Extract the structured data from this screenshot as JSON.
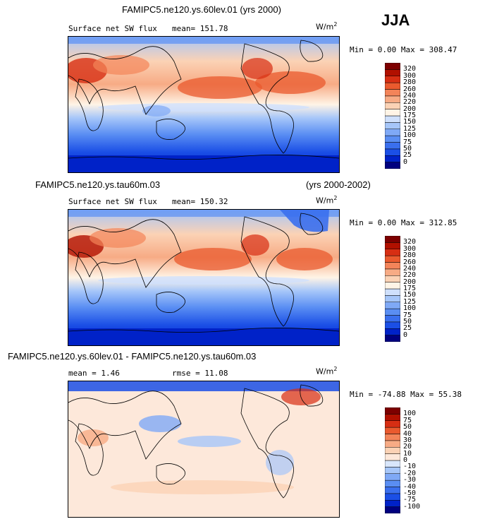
{
  "season": "JJA",
  "chart_data": [
    {
      "type": "heatmap",
      "title": "FAMIPC5.ne120.ys.60lev.01 (yrs 2000)",
      "subtitle_left": "Surface net SW flux",
      "stat1": "mean= 151.78",
      "units_main": "W/m",
      "units_exp": "2",
      "minmax": "Min =   0.00 Max = 308.47",
      "colorbar_levels": [
        "0",
        "25",
        "50",
        "75",
        "100",
        "125",
        "150",
        "175",
        "200",
        "220",
        "240",
        "260",
        "280",
        "300",
        "320"
      ],
      "colorbar_colors": [
        "#00007f",
        "#0022c8",
        "#1b4fe6",
        "#3a6fee",
        "#5a8ef3",
        "#7fa9f6",
        "#a6c6f9",
        "#cfe0fc",
        "#fff4e6",
        "#fbd2b5",
        "#f7ab85",
        "#f38459",
        "#ea5a2e",
        "#d72e13",
        "#b11000",
        "#7d0000"
      ]
    },
    {
      "type": "heatmap",
      "title": "FAMIPC5.ne120.ys.tau60m.03",
      "title_right": "(yrs 2000-2002)",
      "subtitle_left": "Surface net SW flux",
      "stat1": "mean= 150.32",
      "units_main": "W/m",
      "units_exp": "2",
      "minmax": "Min =   0.00 Max = 312.85",
      "colorbar_levels": [
        "0",
        "25",
        "50",
        "75",
        "100",
        "125",
        "150",
        "175",
        "200",
        "220",
        "240",
        "260",
        "280",
        "300",
        "320"
      ],
      "colorbar_colors": [
        "#00007f",
        "#0022c8",
        "#1b4fe6",
        "#3a6fee",
        "#5a8ef3",
        "#7fa9f6",
        "#a6c6f9",
        "#cfe0fc",
        "#fff4e6",
        "#fbd2b5",
        "#f7ab85",
        "#f38459",
        "#ea5a2e",
        "#d72e13",
        "#b11000",
        "#7d0000"
      ]
    },
    {
      "type": "heatmap",
      "title": "FAMIPC5.ne120.ys.60lev.01 - FAMIPC5.ne120.ys.tau60m.03",
      "stat1": "mean =   1.46",
      "stat2": "rmse =  11.08",
      "units_main": "W/m",
      "units_exp": "2",
      "minmax": "Min = -74.88 Max =  55.38",
      "colorbar_levels": [
        "-100",
        "-75",
        "-50",
        "-40",
        "-30",
        "-20",
        "-10",
        "0",
        "10",
        "20",
        "30",
        "40",
        "50",
        "75",
        "100"
      ],
      "colorbar_colors": [
        "#00007f",
        "#0022c8",
        "#1b4fe6",
        "#3a6fee",
        "#5a8ef3",
        "#7fa9f6",
        "#a6c6f9",
        "#d8e6fb",
        "#fde8da",
        "#fbd2b5",
        "#f7ab85",
        "#f38459",
        "#ea5a2e",
        "#d72e13",
        "#b11000",
        "#7d0000"
      ]
    }
  ]
}
